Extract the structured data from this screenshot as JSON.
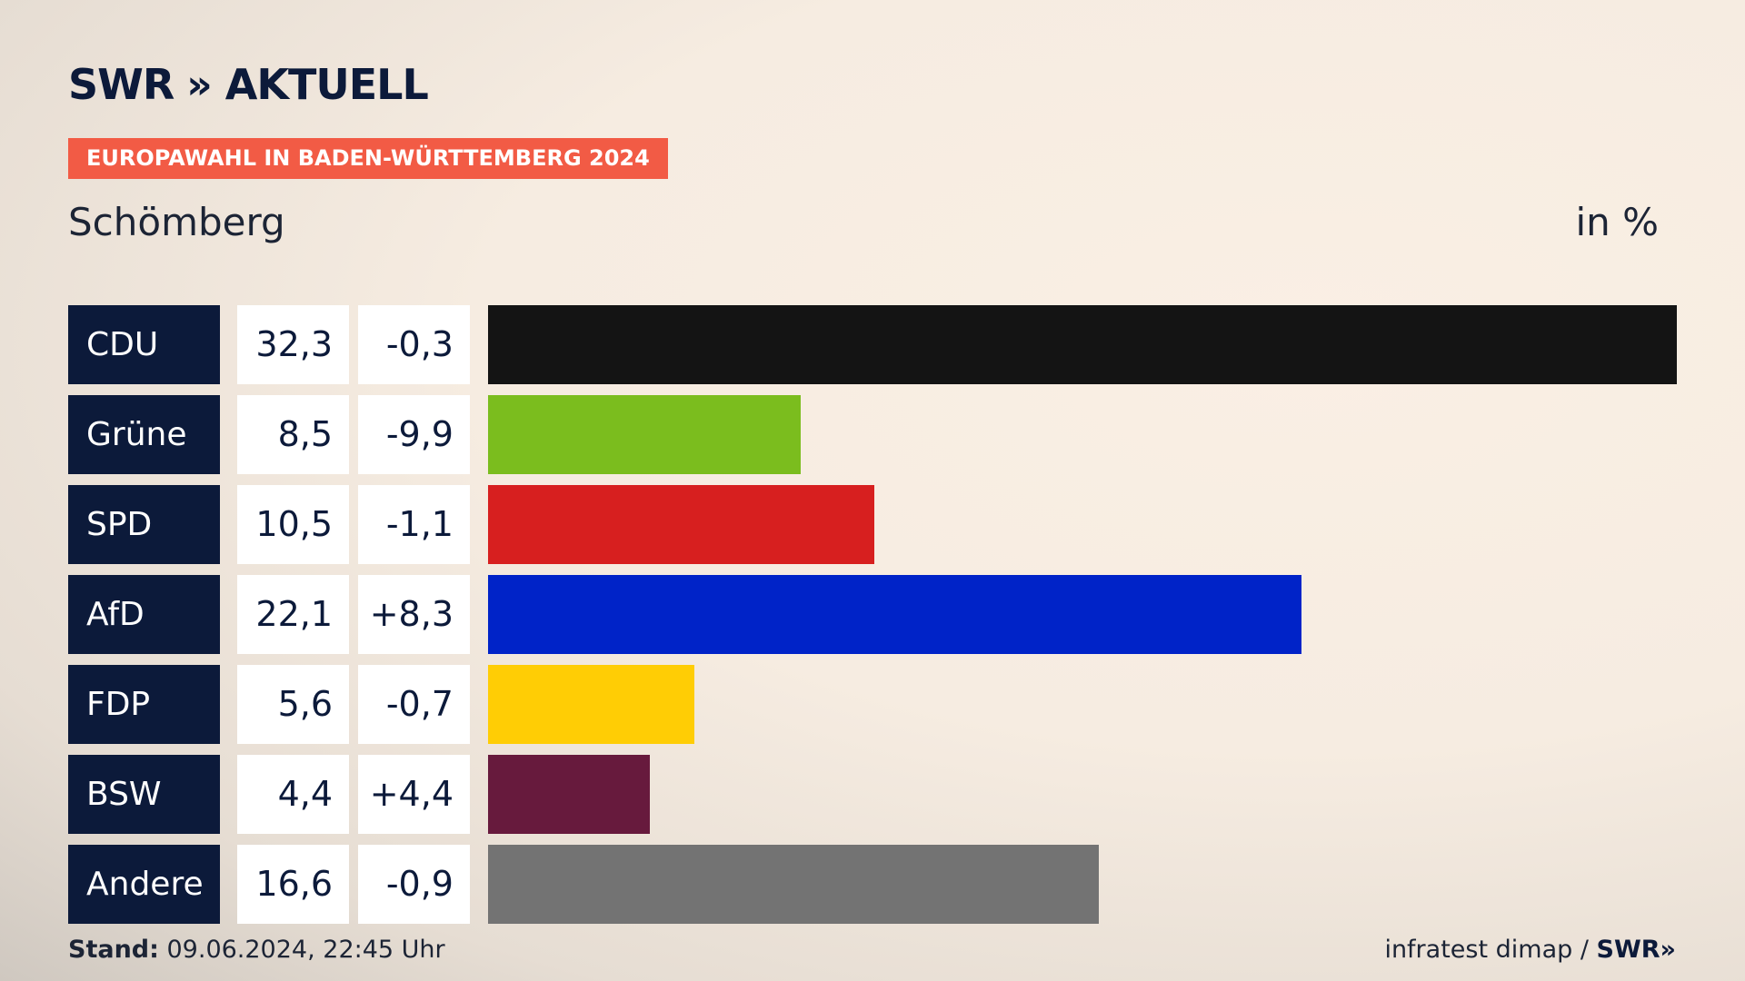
{
  "header": {
    "logo_main": "SWR",
    "logo_chevrons": "»",
    "logo_secondary": "AKTUELL",
    "banner": "EUROPAWAHL IN BADEN-WÜRTTEMBERG 2024",
    "place": "Schömberg",
    "unit": "in %"
  },
  "chart_data": {
    "type": "bar",
    "orientation": "horizontal",
    "categories": [
      "CDU",
      "Grüne",
      "SPD",
      "AfD",
      "FDP",
      "BSW",
      "Andere"
    ],
    "values": [
      32.3,
      8.5,
      10.5,
      22.1,
      5.6,
      4.4,
      16.6
    ],
    "value_labels": [
      "32,3",
      "8,5",
      "10,5",
      "22,1",
      "5,6",
      "4,4",
      "16,6"
    ],
    "change_labels": [
      "-0,3",
      "-9,9",
      "-1,1",
      "+8,3",
      "-0,7",
      "+4,4",
      "-0,9"
    ],
    "colors": [
      "#141414",
      "#7bbd1e",
      "#d71f1f",
      "#0023c8",
      "#ffcd05",
      "#671a3d",
      "#737373"
    ],
    "xlim": [
      0,
      32.3
    ],
    "grid": false
  },
  "footer": {
    "stand_label": "Stand:",
    "stand_value": " 09.06.2024, 22:45 Uhr",
    "source": "infratest dimap / ",
    "source_brand": "SWR»"
  }
}
